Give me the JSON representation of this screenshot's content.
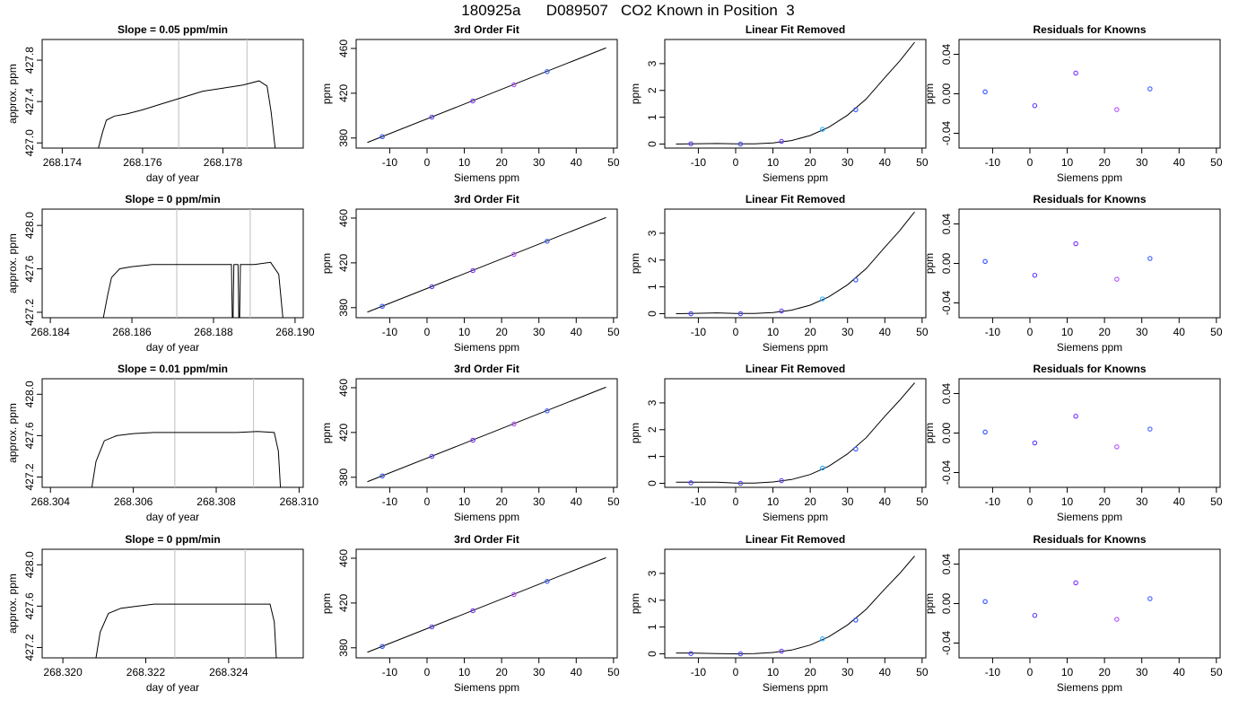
{
  "title": "180925a      D089507   CO2 Known in Position  3",
  "chart_data": [
    {
      "type": "line",
      "panel": "trace",
      "row": 1,
      "title": "Slope =  0.05  ppm/min",
      "xlabel": "day of year",
      "ylabel": "approx. ppm",
      "xlim": [
        268.1735,
        268.18
      ],
      "ylim": [
        426.95,
        428.0
      ],
      "xticks": [
        268.174,
        268.176,
        268.178
      ],
      "xtick_labels": [
        "268.174",
        "268.176",
        "268.178"
      ],
      "yticks": [
        427.0,
        427.4,
        427.8
      ],
      "ytick_labels": [
        "427.0",
        "427.4",
        "427.8"
      ],
      "vlines": [
        268.1769,
        268.1786
      ],
      "series": [
        {
          "x": [
            268.1749,
            268.175,
            268.1751,
            268.1753,
            268.1756,
            268.176,
            268.1765,
            268.177,
            268.1775,
            268.178,
            268.1785,
            268.1789,
            268.1791,
            268.1792,
            268.1793
          ],
          "y": [
            426.95,
            427.1,
            427.22,
            427.26,
            427.28,
            427.32,
            427.38,
            427.44,
            427.5,
            427.53,
            427.56,
            427.6,
            427.55,
            427.3,
            426.95
          ]
        }
      ]
    },
    {
      "type": "scatter",
      "panel": "fit",
      "row": 1,
      "title": "3rd Order Fit",
      "xlabel": "Siemens ppm",
      "ylabel": "ppm",
      "xlim": [
        -19,
        51
      ],
      "ylim": [
        371,
        468
      ],
      "xticks": [
        -10,
        0,
        10,
        20,
        30,
        40,
        50
      ],
      "xtick_labels": [
        "-10",
        "0",
        "10",
        "20",
        "30",
        "40",
        "50"
      ],
      "yticks": [
        380,
        420,
        460
      ],
      "ytick_labels": [
        "380",
        "420",
        "460"
      ],
      "points": {
        "x": [
          -12,
          1.3,
          12.3,
          23.3,
          32.2
        ],
        "y": [
          381.2,
          398.7,
          413.1,
          427.6,
          439.3
        ]
      },
      "fit_line": {
        "x": [
          -16,
          48
        ],
        "y": [
          376,
          460.5
        ]
      }
    },
    {
      "type": "scatter",
      "panel": "linear_removed",
      "row": 1,
      "title": "Linear Fit Removed",
      "xlabel": "Siemens ppm",
      "ylabel": "ppm",
      "xlim": [
        -19,
        51
      ],
      "ylim": [
        -0.15,
        3.9
      ],
      "xticks": [
        -10,
        0,
        10,
        20,
        30,
        40,
        50
      ],
      "xtick_labels": [
        "-10",
        "0",
        "10",
        "20",
        "30",
        "40",
        "50"
      ],
      "yticks": [
        0,
        1,
        2,
        3
      ],
      "ytick_labels": [
        "0",
        "1",
        "2",
        "3"
      ],
      "points": {
        "x": [
          -12,
          1.3,
          12.3,
          23.3,
          32.2
        ],
        "y": [
          0.01,
          0.0,
          0.1,
          0.55,
          1.28
        ]
      },
      "curve": {
        "x": [
          -16,
          -12,
          -5,
          0,
          5,
          10,
          15,
          20,
          25,
          30,
          35,
          40,
          44,
          48
        ],
        "y": [
          0.0,
          0.01,
          0.02,
          0.01,
          0.01,
          0.04,
          0.13,
          0.32,
          0.63,
          1.08,
          1.68,
          2.48,
          3.1,
          3.8
        ]
      }
    },
    {
      "type": "scatter",
      "panel": "residuals",
      "row": 1,
      "title": "Residuals for Knowns",
      "xlabel": "Siemens ppm",
      "ylabel": "ppm",
      "xlim": [
        -19,
        51
      ],
      "ylim": [
        -0.055,
        0.055
      ],
      "xticks": [
        -10,
        0,
        10,
        20,
        30,
        40,
        50
      ],
      "xtick_labels": [
        "-10",
        "0",
        "10",
        "20",
        "30",
        "40",
        "50"
      ],
      "yticks": [
        -0.04,
        0.0,
        0.04
      ],
      "ytick_labels": [
        "-0.04",
        "0.00",
        "0.04"
      ],
      "points": {
        "x": [
          -12,
          1.3,
          12.3,
          23.3,
          32.2
        ],
        "y": [
          0.002,
          -0.012,
          0.021,
          -0.016,
          0.005
        ]
      }
    },
    {
      "type": "line",
      "panel": "trace",
      "row": 2,
      "title": "Slope =  0  ppm/min",
      "xlabel": "day of year",
      "ylabel": "approx. ppm",
      "xlim": [
        268.1838,
        268.1902
      ],
      "ylim": [
        427.15,
        428.15
      ],
      "xticks": [
        268.184,
        268.186,
        268.188,
        268.19
      ],
      "xtick_labels": [
        "268.184",
        "268.186",
        "268.188",
        "268.190"
      ],
      "yticks": [
        427.2,
        427.6,
        428.0
      ],
      "ytick_labels": [
        "427.2",
        "427.6",
        "428.0"
      ],
      "vlines": [
        268.1871,
        268.1889
      ],
      "series": [
        {
          "x": [
            268.1853,
            268.1854,
            268.1855,
            268.1857,
            268.186,
            268.1865,
            268.187,
            268.1875,
            268.188,
            268.18844,
            268.18846,
            268.18848,
            268.1885,
            268.1886,
            268.18862,
            268.18864,
            268.18866,
            268.189,
            268.1894,
            268.1896,
            268.1897
          ],
          "y": [
            427.15,
            427.35,
            427.52,
            427.6,
            427.62,
            427.64,
            427.64,
            427.64,
            427.64,
            427.64,
            427.15,
            427.15,
            427.64,
            427.64,
            427.15,
            427.15,
            427.64,
            427.64,
            427.66,
            427.55,
            427.15
          ]
        }
      ]
    },
    {
      "type": "scatter",
      "panel": "fit",
      "row": 2,
      "title": "3rd Order Fit",
      "xlabel": "Siemens ppm",
      "ylabel": "ppm",
      "xlim": [
        -19,
        51
      ],
      "ylim": [
        371,
        468
      ],
      "xticks": [
        -10,
        0,
        10,
        20,
        30,
        40,
        50
      ],
      "xtick_labels": [
        "-10",
        "0",
        "10",
        "20",
        "30",
        "40",
        "50"
      ],
      "yticks": [
        380,
        420,
        460
      ],
      "ytick_labels": [
        "380",
        "420",
        "460"
      ],
      "points": {
        "x": [
          -12,
          1.3,
          12.3,
          23.3,
          32.2
        ],
        "y": [
          381.2,
          398.7,
          413.1,
          427.6,
          439.3
        ]
      },
      "fit_line": {
        "x": [
          -16,
          48
        ],
        "y": [
          376,
          460.5
        ]
      }
    },
    {
      "type": "scatter",
      "panel": "linear_removed",
      "row": 2,
      "title": "Linear Fit Removed",
      "xlabel": "Siemens ppm",
      "ylabel": "ppm",
      "xlim": [
        -19,
        51
      ],
      "ylim": [
        -0.15,
        3.9
      ],
      "xticks": [
        -10,
        0,
        10,
        20,
        30,
        40,
        50
      ],
      "xtick_labels": [
        "-10",
        "0",
        "10",
        "20",
        "30",
        "40",
        "50"
      ],
      "yticks": [
        0,
        1,
        2,
        3
      ],
      "ytick_labels": [
        "0",
        "1",
        "2",
        "3"
      ],
      "points": {
        "x": [
          -12,
          1.3,
          12.3,
          23.3,
          32.2
        ],
        "y": [
          0.0,
          0.0,
          0.1,
          0.55,
          1.26
        ]
      },
      "curve": {
        "x": [
          -16,
          -12,
          -5,
          0,
          5,
          10,
          15,
          20,
          25,
          30,
          35,
          40,
          44,
          48
        ],
        "y": [
          0.0,
          0.01,
          0.03,
          0.01,
          0.01,
          0.04,
          0.13,
          0.32,
          0.63,
          1.08,
          1.68,
          2.48,
          3.1,
          3.8
        ]
      }
    },
    {
      "type": "scatter",
      "panel": "residuals",
      "row": 2,
      "title": "Residuals for Knowns",
      "xlabel": "Siemens ppm",
      "ylabel": "ppm",
      "xlim": [
        -19,
        51
      ],
      "ylim": [
        -0.055,
        0.055
      ],
      "xticks": [
        -10,
        0,
        10,
        20,
        30,
        40,
        50
      ],
      "xtick_labels": [
        "-10",
        "0",
        "10",
        "20",
        "30",
        "40",
        "50"
      ],
      "yticks": [
        -0.04,
        0.0,
        0.04
      ],
      "ytick_labels": [
        "-0.04",
        "0.00",
        "0.04"
      ],
      "points": {
        "x": [
          -12,
          1.3,
          12.3,
          23.3,
          32.2
        ],
        "y": [
          0.002,
          -0.012,
          0.02,
          -0.016,
          0.005
        ]
      }
    },
    {
      "type": "line",
      "panel": "trace",
      "row": 3,
      "title": "Slope =  0.01  ppm/min",
      "xlabel": "day of year",
      "ylabel": "approx. ppm",
      "xlim": [
        268.3038,
        268.3101
      ],
      "ylim": [
        427.1,
        428.15
      ],
      "xticks": [
        268.304,
        268.306,
        268.308,
        268.31
      ],
      "xtick_labels": [
        "268.304",
        "268.306",
        "268.308",
        "268.310"
      ],
      "yticks": [
        427.2,
        427.6,
        428.0
      ],
      "ytick_labels": [
        "427.2",
        "427.6",
        "428.0"
      ],
      "vlines": [
        268.307,
        268.3089
      ],
      "series": [
        {
          "x": [
            268.305,
            268.3051,
            268.3053,
            268.3056,
            268.306,
            268.3065,
            268.307,
            268.3075,
            268.308,
            268.3085,
            268.309,
            268.3094,
            268.3095,
            268.30955
          ],
          "y": [
            427.1,
            427.35,
            427.55,
            427.6,
            427.62,
            427.63,
            427.63,
            427.63,
            427.63,
            427.63,
            427.64,
            427.63,
            427.45,
            427.1
          ]
        }
      ]
    },
    {
      "type": "scatter",
      "panel": "fit",
      "row": 3,
      "title": "3rd Order Fit",
      "xlabel": "Siemens ppm",
      "ylabel": "ppm",
      "xlim": [
        -19,
        51
      ],
      "ylim": [
        371,
        468
      ],
      "xticks": [
        -10,
        0,
        10,
        20,
        30,
        40,
        50
      ],
      "xtick_labels": [
        "-10",
        "0",
        "10",
        "20",
        "30",
        "40",
        "50"
      ],
      "yticks": [
        380,
        420,
        460
      ],
      "ytick_labels": [
        "380",
        "420",
        "460"
      ],
      "points": {
        "x": [
          -12,
          1.3,
          12.3,
          23.3,
          32.2
        ],
        "y": [
          381.2,
          398.7,
          413.1,
          427.6,
          439.3
        ]
      },
      "fit_line": {
        "x": [
          -16,
          48
        ],
        "y": [
          376,
          460.5
        ]
      }
    },
    {
      "type": "scatter",
      "panel": "linear_removed",
      "row": 3,
      "title": "Linear Fit Removed",
      "xlabel": "Siemens ppm",
      "ylabel": "ppm",
      "xlim": [
        -19,
        51
      ],
      "ylim": [
        -0.15,
        3.9
      ],
      "xticks": [
        -10,
        0,
        10,
        20,
        30,
        40,
        50
      ],
      "xtick_labels": [
        "-10",
        "0",
        "10",
        "20",
        "30",
        "40",
        "50"
      ],
      "yticks": [
        0,
        1,
        2,
        3
      ],
      "ytick_labels": [
        "0",
        "1",
        "2",
        "3"
      ],
      "points": {
        "x": [
          -12,
          1.3,
          12.3,
          23.3,
          32.2
        ],
        "y": [
          0.02,
          0.0,
          0.1,
          0.57,
          1.28
        ]
      },
      "curve": {
        "x": [
          -16,
          -12,
          -5,
          0,
          5,
          10,
          15,
          20,
          25,
          30,
          35,
          40,
          44,
          48
        ],
        "y": [
          0.04,
          0.04,
          0.04,
          0.01,
          0.01,
          0.05,
          0.14,
          0.33,
          0.64,
          1.1,
          1.7,
          2.5,
          3.1,
          3.75
        ]
      }
    },
    {
      "type": "scatter",
      "panel": "residuals",
      "row": 3,
      "title": "Residuals for Knowns",
      "xlabel": "Siemens ppm",
      "ylabel": "ppm",
      "xlim": [
        -19,
        51
      ],
      "ylim": [
        -0.055,
        0.055
      ],
      "xticks": [
        -10,
        0,
        10,
        20,
        30,
        40,
        50
      ],
      "xtick_labels": [
        "-10",
        "0",
        "10",
        "20",
        "30",
        "40",
        "50"
      ],
      "yticks": [
        -0.04,
        0.0,
        0.04
      ],
      "ytick_labels": [
        "-0.04",
        "0.00",
        "0.04"
      ],
      "points": {
        "x": [
          -12,
          1.3,
          12.3,
          23.3,
          32.2
        ],
        "y": [
          0.001,
          -0.01,
          0.017,
          -0.014,
          0.004
        ]
      }
    },
    {
      "type": "line",
      "panel": "trace",
      "row": 4,
      "title": "Slope =  0  ppm/min",
      "xlabel": "day of year",
      "ylabel": "approx. ppm",
      "xlim": [
        268.3195,
        268.3258
      ],
      "ylim": [
        427.1,
        428.15
      ],
      "xticks": [
        268.32,
        268.322,
        268.324
      ],
      "xtick_labels": [
        "268.320",
        "268.322",
        "268.324"
      ],
      "yticks": [
        427.2,
        427.6,
        428.0
      ],
      "ytick_labels": [
        "427.2",
        "427.6",
        "428.0"
      ],
      "vlines": [
        268.3227,
        268.3244
      ],
      "series": [
        {
          "x": [
            268.3208,
            268.3209,
            268.3211,
            268.3214,
            268.3218,
            268.3222,
            268.3227,
            268.3232,
            268.3237,
            268.3242,
            268.3247,
            268.325,
            268.3251,
            268.32515
          ],
          "y": [
            427.1,
            427.35,
            427.53,
            427.58,
            427.6,
            427.62,
            427.62,
            427.62,
            427.62,
            427.62,
            427.62,
            427.62,
            427.45,
            427.1
          ]
        }
      ]
    },
    {
      "type": "scatter",
      "panel": "fit",
      "row": 4,
      "title": "3rd Order Fit",
      "xlabel": "Siemens ppm",
      "ylabel": "ppm",
      "xlim": [
        -19,
        51
      ],
      "ylim": [
        371,
        468
      ],
      "xticks": [
        -10,
        0,
        10,
        20,
        30,
        40,
        50
      ],
      "xtick_labels": [
        "-10",
        "0",
        "10",
        "20",
        "30",
        "40",
        "50"
      ],
      "yticks": [
        380,
        420,
        460
      ],
      "ytick_labels": [
        "380",
        "420",
        "460"
      ],
      "points": {
        "x": [
          -12,
          1.3,
          12.3,
          23.3,
          32.2
        ],
        "y": [
          381.2,
          398.7,
          413.1,
          427.6,
          439.3
        ]
      },
      "fit_line": {
        "x": [
          -16,
          48
        ],
        "y": [
          376,
          460.5
        ]
      }
    },
    {
      "type": "scatter",
      "panel": "linear_removed",
      "row": 4,
      "title": "Linear Fit Removed",
      "xlabel": "Siemens ppm",
      "ylabel": "ppm",
      "xlim": [
        -19,
        51
      ],
      "ylim": [
        -0.15,
        3.9
      ],
      "xticks": [
        -10,
        0,
        10,
        20,
        30,
        40,
        50
      ],
      "xtick_labels": [
        "-10",
        "0",
        "10",
        "20",
        "30",
        "40",
        "50"
      ],
      "yticks": [
        0,
        1,
        2,
        3
      ],
      "ytick_labels": [
        "0",
        "1",
        "2",
        "3"
      ],
      "points": {
        "x": [
          -12,
          1.3,
          12.3,
          23.3,
          32.2
        ],
        "y": [
          0.01,
          0.0,
          0.1,
          0.56,
          1.26
        ]
      },
      "curve": {
        "x": [
          -16,
          -12,
          -5,
          0,
          5,
          10,
          15,
          20,
          25,
          30,
          35,
          40,
          44,
          48
        ],
        "y": [
          0.03,
          0.03,
          0.01,
          0.0,
          0.01,
          0.05,
          0.14,
          0.33,
          0.64,
          1.08,
          1.66,
          2.42,
          3.0,
          3.65
        ]
      }
    },
    {
      "type": "scatter",
      "panel": "residuals",
      "row": 4,
      "title": "Residuals for Knowns",
      "xlabel": "Siemens ppm",
      "ylabel": "ppm",
      "xlim": [
        -19,
        51
      ],
      "ylim": [
        -0.055,
        0.055
      ],
      "xticks": [
        -10,
        0,
        10,
        20,
        30,
        40,
        50
      ],
      "xtick_labels": [
        "-10",
        "0",
        "10",
        "20",
        "30",
        "40",
        "50"
      ],
      "yticks": [
        -0.04,
        0.0,
        0.04
      ],
      "ytick_labels": [
        "-0.04",
        "0.00",
        "0.04"
      ],
      "points": {
        "x": [
          -12,
          1.3,
          12.3,
          23.3,
          32.2
        ],
        "y": [
          0.002,
          -0.012,
          0.021,
          -0.016,
          0.005
        ]
      }
    }
  ]
}
